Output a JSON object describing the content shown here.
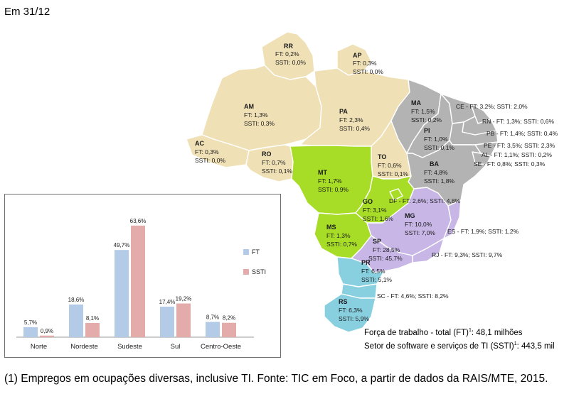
{
  "header": {
    "date_label": "Em 31/12"
  },
  "colors": {
    "norte": "#efe0b5",
    "nordeste": "#b3b3b3",
    "centro_oeste": "#a7dc27",
    "sudeste": "#c7b6e6",
    "sul": "#88cfe0",
    "ft": "#b3cbe6",
    "ssti": "#e3acab"
  },
  "states": [
    {
      "code": "RR",
      "ft": "FT: 0,2%",
      "ssti": "SSTI: 0,0%"
    },
    {
      "code": "AP",
      "ft": "FT: 0,3%",
      "ssti": "SSTI: 0,0%"
    },
    {
      "code": "AM",
      "ft": "FT: 1,3%",
      "ssti": "SSTI: 0,3%"
    },
    {
      "code": "PA",
      "ft": "FT: 2,3%",
      "ssti": "SSTI: 0,4%"
    },
    {
      "code": "AC",
      "ft": "FT: 0,3%",
      "ssti": "SSTI: 0,0%"
    },
    {
      "code": "RO",
      "ft": "FT: 0,7%",
      "ssti": "SSTI: 0,1%"
    },
    {
      "code": "MA",
      "ft": "FT: 1,5%",
      "ssti": "SSTI: 0,2%"
    },
    {
      "code": "PI",
      "ft": "FT: 1,0%",
      "ssti": "SSTI: 0,1%"
    },
    {
      "code": "TO",
      "ft": "FT: 0,6%",
      "ssti": "SSTI: 0,1%"
    },
    {
      "code": "BA",
      "ft": "FT: 4,8%",
      "ssti": "SSTI: 1,8%"
    },
    {
      "code": "MT",
      "ft": "FT: 1,7%",
      "ssti": "SSTI: 0,9%"
    },
    {
      "code": "GO",
      "ft": "FT: 3,1%",
      "ssti": "SSTI: 1,6%"
    },
    {
      "code": "MS",
      "ft": "FT: 1,3%",
      "ssti": "SSTI: 0,7%"
    },
    {
      "code": "MG",
      "ft": "FT: 10,0%",
      "ssti": "SSTI: 7,0%"
    },
    {
      "code": "SP",
      "ft": "FT: 28,5%",
      "ssti": "SSTI: 45,7%"
    },
    {
      "code": "PR",
      "ft": "FT: 6,5%",
      "ssti": "SSTI: 5,1%"
    },
    {
      "code": "RS",
      "ft": "FT: 6,3%",
      "ssti": "SSTI: 5,9%"
    }
  ],
  "inline_states": [
    {
      "code": "CE",
      "text": "CE - FT: 3,2%; SSTI: 2,0%"
    },
    {
      "code": "RN",
      "text": "RN - FT: 1,3%; SSTI: 0,6%"
    },
    {
      "code": "PB",
      "text": "PB - FT: 1,4%; SSTI: 0,4%"
    },
    {
      "code": "PE",
      "text": "PE - FT: 3,5%; SSTI: 2,3%"
    },
    {
      "code": "AL",
      "text": "AL - FT: 1,1%; SSTI: 0,2%"
    },
    {
      "code": "SE",
      "text": "SE - FT: 0,8%; SSTI: 0,3%"
    },
    {
      "code": "DF",
      "text": "DF - FT: 2,6%; SSTI: 4,8%"
    },
    {
      "code": "ES",
      "text": "ES - FT: 1,9%; SSTI: 1,2%"
    },
    {
      "code": "RJ",
      "text": "RJ - FT: 9,3%; SSTI: 9,7%"
    },
    {
      "code": "SC",
      "text": "SC - FT: 4,6%; SSTI: 8,2%"
    }
  ],
  "totals": {
    "ft_label": "Força de trabalho - total (FT)",
    "ft_sup": "1",
    "ft_value": ": 48,1 milhões",
    "ssti_label": "Setor de software e serviços de TI (SSTI)",
    "ssti_sup": "1",
    "ssti_value": ": 443,5 mil"
  },
  "footnote": "(1) Empregos em ocupações diversas, inclusive TI. Fonte: TIC em Foco, a partir de dados da RAIS/MTE, 2015.",
  "chart_data": {
    "type": "bar",
    "categories": [
      "Norte",
      "Nordeste",
      "Sudeste",
      "Sul",
      "Centro-Oeste"
    ],
    "series": [
      {
        "name": "FT",
        "values": [
          5.7,
          18.6,
          49.7,
          17.4,
          8.7
        ],
        "labels": [
          "5,7%",
          "18,6%",
          "49,7%",
          "17,4%",
          "8,7%"
        ]
      },
      {
        "name": "SSTI",
        "values": [
          0.9,
          8.1,
          63.6,
          19.2,
          8.2
        ],
        "labels": [
          "0,9%",
          "8,1%",
          "63,6%",
          "19,2%",
          "8,2%"
        ]
      }
    ],
    "ylim": [
      0,
      70
    ],
    "legend": "right",
    "grid": false
  }
}
